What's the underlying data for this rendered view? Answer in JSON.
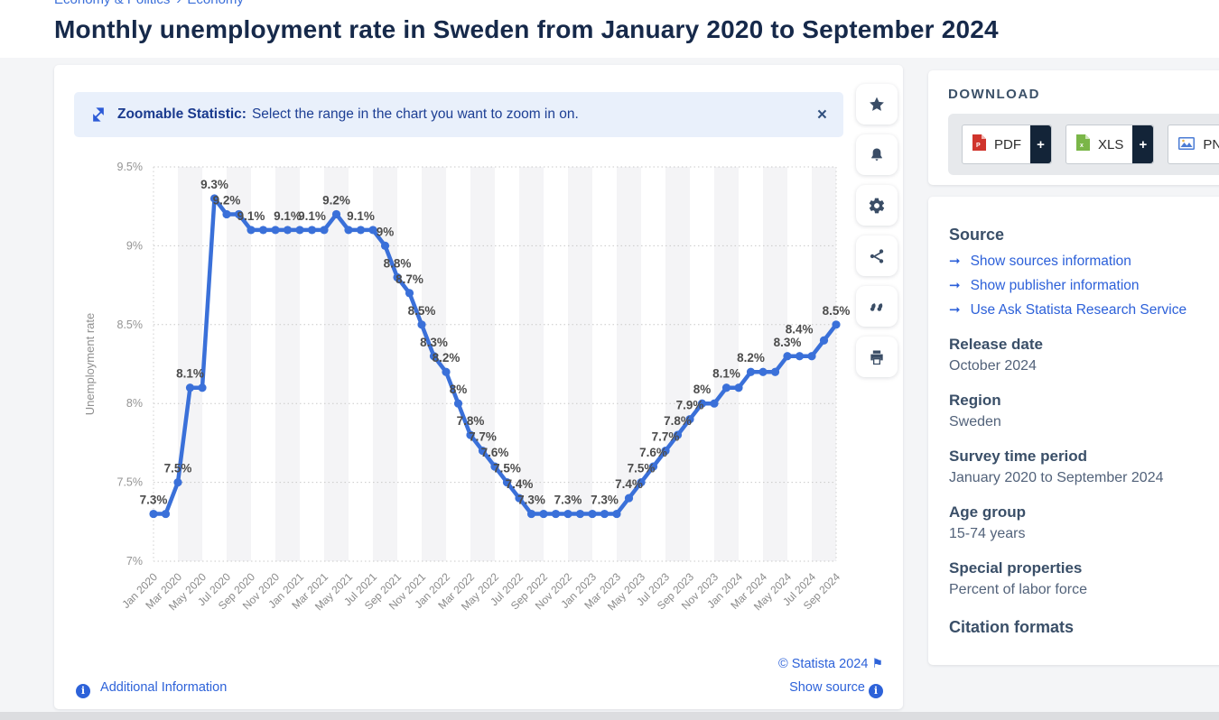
{
  "breadcrumb": {
    "items": [
      "Economy & Politics",
      "Economy"
    ],
    "separator": "›"
  },
  "page_title": "Monthly unemployment rate in Sweden from January 2020 to September 2024",
  "banner": {
    "bold": "Zoomable Statistic:",
    "text": "Select the range in the chart you want to zoom in on.",
    "close": "×"
  },
  "chart_data": {
    "type": "line",
    "title": "Monthly unemployment rate in Sweden from January 2020 to September 2024",
    "xlabel": "",
    "ylabel": "Unemployment rate",
    "ylim": [
      7,
      9.5
    ],
    "grid": "dotted-horizontal",
    "legend": "none",
    "line_color": "#3a70d9",
    "y_ticks": [
      {
        "v": 7.0,
        "label": "7%"
      },
      {
        "v": 7.5,
        "label": "7.5%"
      },
      {
        "v": 8.0,
        "label": "8%"
      },
      {
        "v": 8.5,
        "label": "8.5%"
      },
      {
        "v": 9.0,
        "label": "9%"
      },
      {
        "v": 9.5,
        "label": "9.5%"
      }
    ],
    "series": [
      {
        "name": "Unemployment rate",
        "points": [
          {
            "m": "Jan 2020",
            "v": 7.3,
            "dl": "7.3%"
          },
          {
            "m": "Feb 2020",
            "v": 7.3
          },
          {
            "m": "Mar 2020",
            "v": 7.5,
            "dl": "7.5%"
          },
          {
            "m": "Apr 2020",
            "v": 8.1,
            "dl": "8.1%"
          },
          {
            "m": "May 2020",
            "v": 8.1
          },
          {
            "m": "Jun 2020",
            "v": 9.3,
            "dl": "9.3%"
          },
          {
            "m": "Jul 2020",
            "v": 9.2,
            "dl": "9.2%"
          },
          {
            "m": "Aug 2020",
            "v": 9.2
          },
          {
            "m": "Sep 2020",
            "v": 9.1,
            "dl": "9.1%"
          },
          {
            "m": "Oct 2020",
            "v": 9.1
          },
          {
            "m": "Nov 2020",
            "v": 9.1
          },
          {
            "m": "Dec 2020",
            "v": 9.1,
            "dl": "9.1%"
          },
          {
            "m": "Jan 2021",
            "v": 9.1
          },
          {
            "m": "Feb 2021",
            "v": 9.1,
            "dl": "9.1%"
          },
          {
            "m": "Mar 2021",
            "v": 9.1
          },
          {
            "m": "Apr 2021",
            "v": 9.2,
            "dl": "9.2%"
          },
          {
            "m": "May 2021",
            "v": 9.1
          },
          {
            "m": "Jun 2021",
            "v": 9.1,
            "dl": "9.1%"
          },
          {
            "m": "Jul 2021",
            "v": 9.1
          },
          {
            "m": "Aug 2021",
            "v": 9.0,
            "dl": "9%"
          },
          {
            "m": "Sep 2021",
            "v": 8.8,
            "dl": "8.8%"
          },
          {
            "m": "Oct 2021",
            "v": 8.7,
            "dl": "8.7%"
          },
          {
            "m": "Nov 2021",
            "v": 8.5,
            "dl": "8.5%"
          },
          {
            "m": "Dec 2021",
            "v": 8.3,
            "dl": "8.3%"
          },
          {
            "m": "Jan 2022",
            "v": 8.2,
            "dl": "8.2%"
          },
          {
            "m": "Feb 2022",
            "v": 8.0,
            "dl": "8%"
          },
          {
            "m": "Mar 2022",
            "v": 7.8,
            "dl": "7.8%"
          },
          {
            "m": "Apr 2022",
            "v": 7.7,
            "dl": "7.7%"
          },
          {
            "m": "May 2022",
            "v": 7.6,
            "dl": "7.6%"
          },
          {
            "m": "Jun 2022",
            "v": 7.5,
            "dl": "7.5%"
          },
          {
            "m": "Jul 2022",
            "v": 7.4,
            "dl": "7.4%"
          },
          {
            "m": "Aug 2022",
            "v": 7.3,
            "dl": "7.3%"
          },
          {
            "m": "Sep 2022",
            "v": 7.3
          },
          {
            "m": "Oct 2022",
            "v": 7.3
          },
          {
            "m": "Nov 2022",
            "v": 7.3,
            "dl": "7.3%"
          },
          {
            "m": "Dec 2022",
            "v": 7.3
          },
          {
            "m": "Jan 2023",
            "v": 7.3
          },
          {
            "m": "Feb 2023",
            "v": 7.3,
            "dl": "7.3%"
          },
          {
            "m": "Mar 2023",
            "v": 7.3
          },
          {
            "m": "Apr 2023",
            "v": 7.4,
            "dl": "7.4%"
          },
          {
            "m": "May 2023",
            "v": 7.5,
            "dl": "7.5%"
          },
          {
            "m": "Jun 2023",
            "v": 7.6,
            "dl": "7.6%"
          },
          {
            "m": "Jul 2023",
            "v": 7.7,
            "dl": "7.7%"
          },
          {
            "m": "Aug 2023",
            "v": 7.8,
            "dl": "7.8%"
          },
          {
            "m": "Sep 2023",
            "v": 7.9,
            "dl": "7.9%"
          },
          {
            "m": "Oct 2023",
            "v": 8.0,
            "dl": "8%"
          },
          {
            "m": "Nov 2023",
            "v": 8.0
          },
          {
            "m": "Dec 2023",
            "v": 8.1,
            "dl": "8.1%"
          },
          {
            "m": "Jan 2024",
            "v": 8.1
          },
          {
            "m": "Feb 2024",
            "v": 8.2,
            "dl": "8.2%"
          },
          {
            "m": "Mar 2024",
            "v": 8.2
          },
          {
            "m": "Apr 2024",
            "v": 8.2
          },
          {
            "m": "May 2024",
            "v": 8.3,
            "dl": "8.3%"
          },
          {
            "m": "Jun 2024",
            "v": 8.3
          },
          {
            "m": "Jul 2024",
            "v": 8.3
          },
          {
            "m": "Aug 2024",
            "v": 8.4,
            "dl": "8.4%",
            "lp": "l"
          },
          {
            "m": "Sep 2024",
            "v": 8.5,
            "dl": "8.5%"
          }
        ]
      }
    ]
  },
  "chart_footer": {
    "copyright": "© Statista 2024",
    "show_source": "Show source",
    "additional_info": "Additional Information"
  },
  "toolbar": {
    "buttons": [
      "favorite",
      "notifications",
      "settings",
      "share",
      "cite",
      "print"
    ]
  },
  "sidebar": {
    "download": {
      "title": "DOWNLOAD",
      "plus": "+",
      "formats": [
        {
          "label": "PDF"
        },
        {
          "label": "XLS"
        },
        {
          "label": "PNG"
        }
      ]
    },
    "source": {
      "title": "Source",
      "links": [
        "Show sources information",
        "Show publisher information",
        "Use Ask Statista Research Service"
      ]
    },
    "details": [
      {
        "label": "Release date",
        "value": "October 2024"
      },
      {
        "label": "Region",
        "value": "Sweden"
      },
      {
        "label": "Survey time period",
        "value": "January 2020 to September 2024"
      },
      {
        "label": "Age group",
        "value": "15-74 years"
      },
      {
        "label": "Special properties",
        "value": "Percent of labor force"
      }
    ],
    "clipped_heading": "Citation formats"
  }
}
